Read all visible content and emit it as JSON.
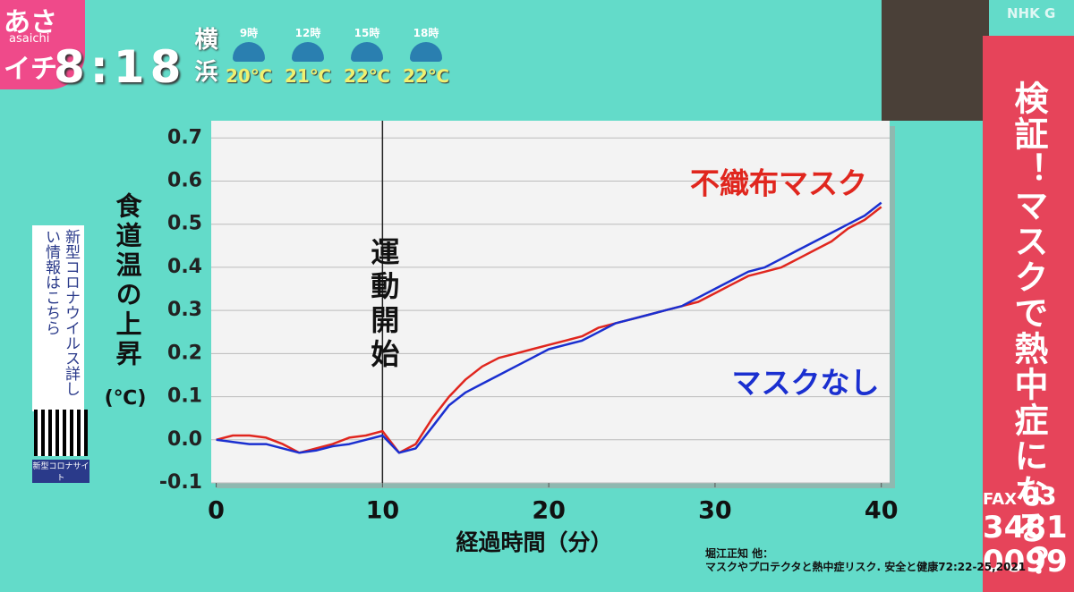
{
  "chart_data": {
    "type": "line",
    "y_label": "食道温の上昇",
    "y_unit": "(℃)",
    "x_label": "経過時間（分）",
    "x": [
      0,
      1,
      2,
      3,
      4,
      5,
      6,
      7,
      8,
      9,
      10,
      11,
      12,
      13,
      14,
      15,
      16,
      17,
      18,
      19,
      20,
      21,
      22,
      23,
      24,
      25,
      26,
      27,
      28,
      29,
      30,
      31,
      32,
      33,
      34,
      35,
      36,
      37,
      38,
      39,
      40
    ],
    "series": [
      {
        "name": "不織布マスク",
        "color": "#e0261e",
        "values": [
          0.0,
          0.01,
          0.01,
          0.005,
          -0.01,
          -0.03,
          -0.02,
          -0.01,
          0.005,
          0.01,
          0.02,
          -0.03,
          -0.01,
          0.05,
          0.1,
          0.14,
          0.17,
          0.19,
          0.2,
          0.21,
          0.22,
          0.23,
          0.24,
          0.26,
          0.27,
          0.28,
          0.29,
          0.3,
          0.31,
          0.32,
          0.34,
          0.36,
          0.38,
          0.39,
          0.4,
          0.42,
          0.44,
          0.46,
          0.49,
          0.51,
          0.54
        ]
      },
      {
        "name": "マスクなし",
        "color": "#1a2fd0",
        "values": [
          0.0,
          -0.005,
          -0.01,
          -0.01,
          -0.02,
          -0.03,
          -0.025,
          -0.015,
          -0.01,
          0.0,
          0.01,
          -0.03,
          -0.02,
          0.03,
          0.08,
          0.11,
          0.13,
          0.15,
          0.17,
          0.19,
          0.21,
          0.22,
          0.23,
          0.25,
          0.27,
          0.28,
          0.29,
          0.3,
          0.31,
          0.33,
          0.35,
          0.37,
          0.39,
          0.4,
          0.42,
          0.44,
          0.46,
          0.48,
          0.5,
          0.52,
          0.55
        ]
      }
    ],
    "annotations": [
      {
        "text": "運動開始",
        "x": 10
      }
    ],
    "xlim": [
      -0.3,
      40.5
    ],
    "ylim": [
      -0.1,
      0.74
    ],
    "xticks": [
      0,
      10,
      20,
      30,
      40
    ],
    "yticks": [
      -0.1,
      {
        "value": 0,
        "label": "0.0"
      },
      0.1,
      0.2,
      0.3,
      0.4,
      0.5,
      0.6,
      0.7
    ],
    "grid": true
  },
  "overlay": {
    "logo": {
      "top": "あさ",
      "sub": "asaichi",
      "bottom": "イチ"
    },
    "clock": "8:18",
    "weather": {
      "city": "横浜",
      "times": [
        "9時",
        "12時",
        "15時",
        "18時"
      ],
      "temps": [
        "20℃",
        "21℃",
        "22℃",
        "22℃"
      ]
    },
    "channel": "NHK G",
    "banner": "検証！マスクで熱中症になる？",
    "fax": {
      "label": "FAX",
      "lines": [
        "03",
        "3481",
        "0099"
      ]
    },
    "info": "新型コロナウイルス詳しい情報はこちら",
    "qr_caption": "新型コロナサイト",
    "citation": [
      "堀江正知 他：",
      "マスクやプロテクタと熱中症リスク. 安全と健康72:22-25,2021"
    ]
  }
}
